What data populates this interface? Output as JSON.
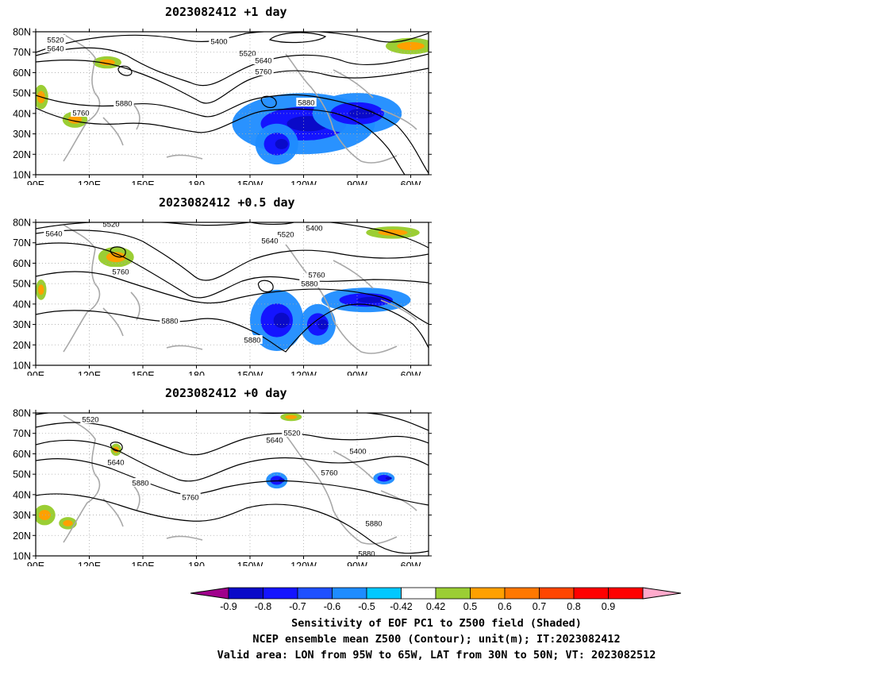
{
  "panels": [
    {
      "title": "2023082412  +1 day",
      "contour_labels": [
        "5520",
        "5640",
        "5400",
        "5520",
        "5640",
        "5760",
        "5880",
        "5760",
        "5880"
      ],
      "negative_blobs": [
        {
          "lon": -120,
          "lat": 35,
          "rx": 40,
          "ry": 15
        },
        {
          "lon": -90,
          "lat": 40,
          "rx": 25,
          "ry": 10
        },
        {
          "lon": -135,
          "lat": 25,
          "rx": 12,
          "ry": 10
        }
      ],
      "positive_blobs": [
        {
          "lon": 130,
          "lat": 65,
          "rx": 8,
          "ry": 3
        },
        {
          "lon": 93,
          "lat": 48,
          "rx": 4,
          "ry": 6
        },
        {
          "lon": 112,
          "lat": 37,
          "rx": 7,
          "ry": 4
        },
        {
          "lon": -60,
          "lat": 73,
          "rx": 14,
          "ry": 4
        }
      ]
    },
    {
      "title": "2023082412  +0.5 day",
      "contour_labels": [
        "5520",
        "5640",
        "5520",
        "5400",
        "5640",
        "5760",
        "5880",
        "5760",
        "5880",
        "5880"
      ],
      "negative_blobs": [
        {
          "lon": -135,
          "lat": 32,
          "rx": 15,
          "ry": 15
        },
        {
          "lon": -85,
          "lat": 42,
          "rx": 25,
          "ry": 6
        },
        {
          "lon": -112,
          "lat": 30,
          "rx": 10,
          "ry": 10
        }
      ],
      "positive_blobs": [
        {
          "lon": 135,
          "lat": 63,
          "rx": 10,
          "ry": 5
        },
        {
          "lon": 93,
          "lat": 47,
          "rx": 3,
          "ry": 5
        },
        {
          "lon": -70,
          "lat": 75,
          "rx": 15,
          "ry": 3
        }
      ]
    },
    {
      "title": "2023082412  +0 day",
      "contour_labels": [
        "5520",
        "5520",
        "5640",
        "5640",
        "5400",
        "5880",
        "5760",
        "5760",
        "5880",
        "5880"
      ],
      "negative_blobs": [
        {
          "lon": -135,
          "lat": 47,
          "rx": 6,
          "ry": 4
        },
        {
          "lon": -75,
          "lat": 48,
          "rx": 6,
          "ry": 3
        }
      ],
      "positive_blobs": [
        {
          "lon": 95,
          "lat": 30,
          "rx": 6,
          "ry": 5
        },
        {
          "lon": 108,
          "lat": 26,
          "rx": 5,
          "ry": 3
        },
        {
          "lon": 135,
          "lat": 62,
          "rx": 3,
          "ry": 3
        },
        {
          "lon": -127,
          "lat": 78,
          "rx": 6,
          "ry": 2
        }
      ]
    }
  ],
  "lat_labels": [
    "80N",
    "70N",
    "60N",
    "50N",
    "40N",
    "30N",
    "20N",
    "10N"
  ],
  "lon_labels": [
    "90E",
    "120E",
    "150E",
    "180",
    "150W",
    "120W",
    "90W",
    "60W"
  ],
  "colorbar": {
    "ticks": [
      "-0.9",
      "-0.8",
      "-0.7",
      "-0.6",
      "-0.5",
      "-0.42",
      "0.42",
      "0.5",
      "0.6",
      "0.7",
      "0.8",
      "0.9"
    ],
    "colors": [
      "#a0008c",
      "#0a0ac8",
      "#1414ff",
      "#1e50ff",
      "#1e8cff",
      "#00c8ff",
      "#ffffff",
      "#9bce34",
      "#ffa000",
      "#ff7800",
      "#ff4600",
      "#ff0000",
      "#ff0000",
      "#ffaacc"
    ]
  },
  "caption": {
    "line1": "Sensitivity of EOF PC1 to Z500 field (Shaded)",
    "line2": "NCEP ensemble mean Z500 (Contour); unit(m); IT:2023082412",
    "line3": "Valid area: LON from 95W to 65W, LAT from 30N to 50N; VT: 2023082512"
  }
}
